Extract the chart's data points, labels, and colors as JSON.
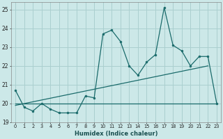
{
  "xlabel": "Humidex (Indice chaleur)",
  "bg_color": "#cce8e8",
  "grid_color": "#aacfcf",
  "line_color": "#1a6b6b",
  "xlim": [
    -0.5,
    23.5
  ],
  "ylim": [
    19,
    25.4
  ],
  "yticks": [
    19,
    20,
    21,
    22,
    23,
    24,
    25
  ],
  "xticks": [
    0,
    1,
    2,
    3,
    4,
    5,
    6,
    7,
    8,
    9,
    10,
    11,
    12,
    13,
    14,
    15,
    16,
    17,
    18,
    19,
    20,
    21,
    22,
    23
  ],
  "line1_x": [
    0,
    1,
    2,
    3,
    4,
    5,
    6,
    7,
    8,
    9,
    10,
    11,
    12,
    13,
    14,
    15,
    16,
    17,
    18,
    19,
    20,
    21,
    22,
    23
  ],
  "line1_y": [
    20.7,
    19.8,
    19.6,
    20.0,
    19.7,
    19.5,
    19.5,
    19.5,
    20.4,
    20.3,
    23.7,
    23.9,
    23.3,
    22.0,
    21.5,
    22.2,
    22.6,
    25.1,
    23.1,
    22.8,
    22.0,
    22.5,
    22.5,
    20.0
  ],
  "line2_x": [
    0,
    22
  ],
  "line2_y": [
    19.9,
    22.0
  ],
  "line3_x": [
    0,
    23
  ],
  "line3_y": [
    20.0,
    20.0
  ]
}
